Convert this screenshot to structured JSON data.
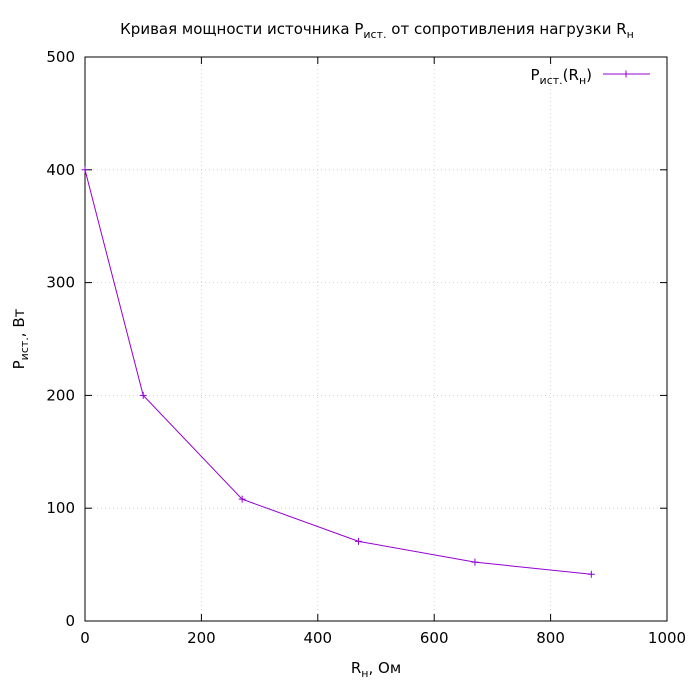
{
  "chart_data": {
    "type": "line",
    "title": {
      "prefix": "Кривая мощности источника P",
      "sub1": "ист.",
      "middle": " от сопротивления нагрузки R",
      "sub2": "н"
    },
    "xlabel": {
      "main": "R",
      "sub": "н",
      "suffix": ", Ом"
    },
    "ylabel": {
      "main": "P",
      "sub": "ист.",
      "suffix": ", Вт"
    },
    "xlim": [
      0,
      1000
    ],
    "ylim": [
      0,
      500
    ],
    "xticks": [
      0,
      200,
      400,
      600,
      800,
      1000
    ],
    "yticks": [
      0,
      100,
      200,
      300,
      400,
      500
    ],
    "grid": true,
    "legend_position": "top-right",
    "series": [
      {
        "name": "Pист.(Rн)",
        "legend": {
          "main": "P",
          "sub1": "ист.",
          "mid": "(R",
          "sub2": "н",
          "end": ")"
        },
        "color": "#9400d3",
        "x": [
          0,
          100,
          270,
          470,
          670,
          870
        ],
        "y": [
          400,
          200,
          108,
          70.6,
          52.2,
          41.4
        ]
      }
    ]
  }
}
